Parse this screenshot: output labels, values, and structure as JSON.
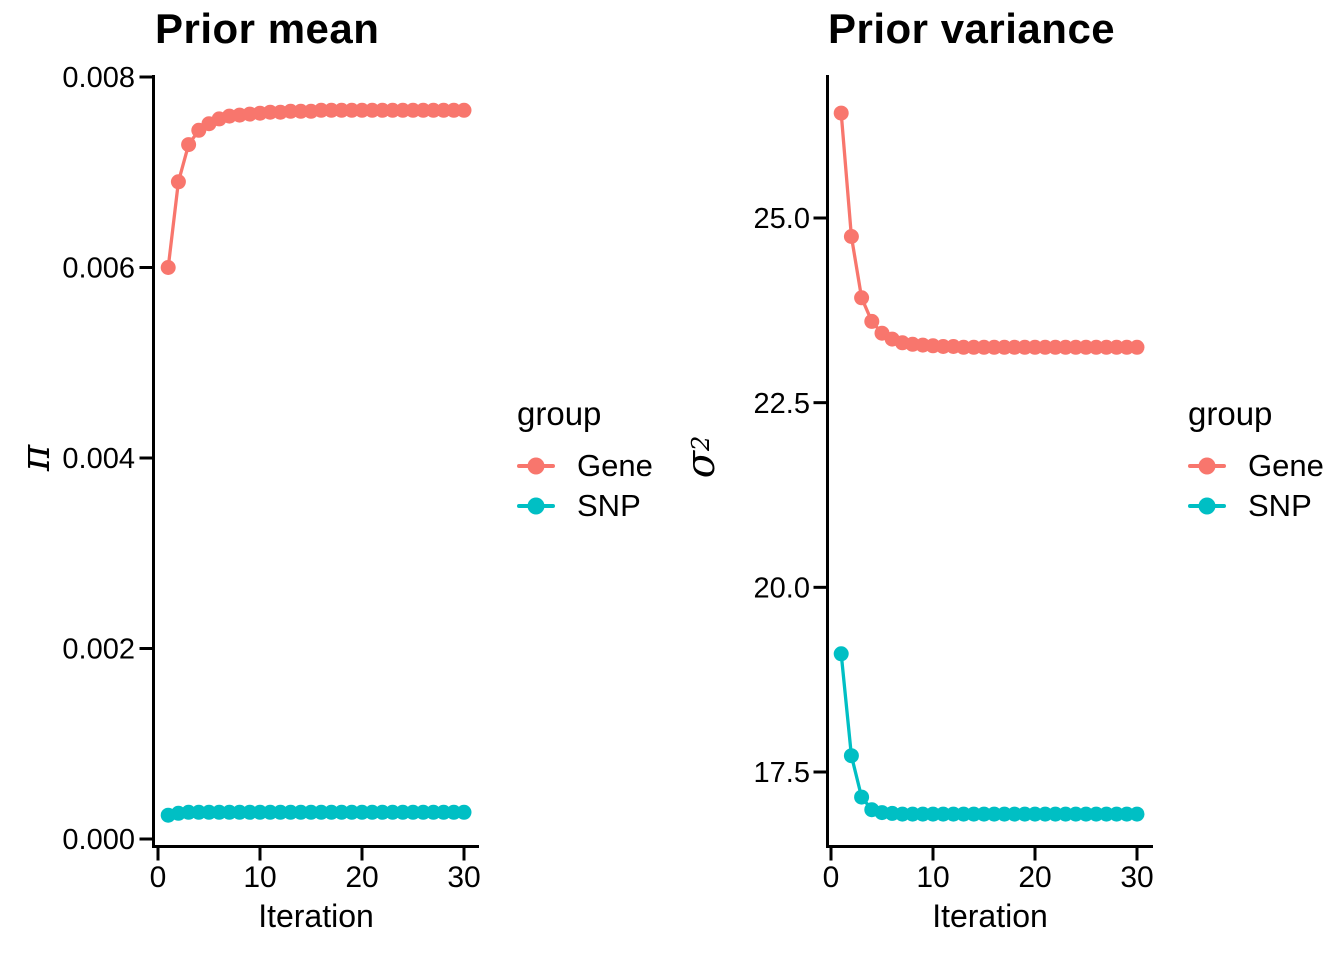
{
  "figure": {
    "background": "#ffffff",
    "text_color": "#000000",
    "axis_color": "#000000",
    "gene_color": "#F8766D",
    "snp_color": "#00BFC4"
  },
  "chart_data": [
    {
      "type": "line",
      "title": "Prior mean",
      "xlabel": "Iteration",
      "ylabel": "π",
      "ylabel_base": "π",
      "ylabel_sup": "",
      "xlim": [
        -0.45,
        31.45
      ],
      "ylim": [
        0,
        0.008
      ],
      "grid": "off",
      "legend_position": "right",
      "x_tick_values": [
        0,
        10,
        20,
        30
      ],
      "x_tick_labels": [
        "0",
        "10",
        "20",
        "30"
      ],
      "y_tick_values": [
        0,
        0.002,
        0.004,
        0.006,
        0.008
      ],
      "y_tick_labels": [
        "0.000",
        "0.002",
        "0.004",
        "0.006",
        "0.008"
      ],
      "x": [
        1,
        2,
        3,
        4,
        5,
        6,
        7,
        8,
        9,
        10,
        11,
        12,
        13,
        14,
        15,
        16,
        17,
        18,
        19,
        20,
        21,
        22,
        23,
        24,
        25,
        26,
        27,
        28,
        29,
        30
      ],
      "series": [
        {
          "name": "Gene",
          "color": "#F8766D",
          "values": [
            0.006,
            0.0069,
            0.00729,
            0.00744,
            0.00751,
            0.00756,
            0.00759,
            0.0076,
            0.00761,
            0.00762,
            0.00763,
            0.00763,
            0.00764,
            0.00764,
            0.00764,
            0.00765,
            0.00765,
            0.00765,
            0.00765,
            0.00765,
            0.00765,
            0.00765,
            0.00765,
            0.00765,
            0.00765,
            0.00765,
            0.00765,
            0.00765,
            0.00765,
            0.00765
          ]
        },
        {
          "name": "SNP",
          "color": "#00BFC4",
          "values": [
            0.00025,
            0.00027,
            0.00028,
            0.00028,
            0.00028,
            0.00028,
            0.00028,
            0.00028,
            0.00028,
            0.00028,
            0.00028,
            0.00028,
            0.00028,
            0.00028,
            0.00028,
            0.00028,
            0.00028,
            0.00028,
            0.00028,
            0.00028,
            0.00028,
            0.00028,
            0.00028,
            0.00028,
            0.00028,
            0.00028,
            0.00028,
            0.00028,
            0.00028,
            0.00028
          ]
        }
      ],
      "legend": {
        "title": "group",
        "entries": [
          {
            "label": "Gene",
            "color": "#F8766D"
          },
          {
            "label": "SNP",
            "color": "#00BFC4"
          }
        ]
      }
    },
    {
      "type": "line",
      "title": "Prior variance",
      "xlabel": "Iteration",
      "ylabel": "σ²",
      "ylabel_base": "σ",
      "ylabel_sup": "2",
      "xlim": [
        -0.45,
        31.45
      ],
      "ylim": [
        16.5,
        26.95
      ],
      "grid": "off",
      "legend_position": "right",
      "x_tick_values": [
        0,
        10,
        20,
        30
      ],
      "x_tick_labels": [
        "0",
        "10",
        "20",
        "30"
      ],
      "y_tick_values": [
        17.5,
        20.0,
        22.5,
        25.0
      ],
      "y_tick_labels": [
        "17.5",
        "20.0",
        "22.5",
        "25.0"
      ],
      "x": [
        1,
        2,
        3,
        4,
        5,
        6,
        7,
        8,
        9,
        10,
        11,
        12,
        13,
        14,
        15,
        16,
        17,
        18,
        19,
        20,
        21,
        22,
        23,
        24,
        25,
        26,
        27,
        28,
        29,
        30
      ],
      "series": [
        {
          "name": "Gene",
          "color": "#F8766D",
          "values": [
            26.42,
            24.75,
            23.92,
            23.6,
            23.44,
            23.36,
            23.31,
            23.29,
            23.28,
            23.27,
            23.26,
            23.26,
            23.25,
            23.25,
            23.25,
            23.25,
            23.25,
            23.25,
            23.25,
            23.25,
            23.25,
            23.25,
            23.25,
            23.25,
            23.25,
            23.25,
            23.25,
            23.25,
            23.25,
            23.25
          ]
        },
        {
          "name": "SNP",
          "color": "#00BFC4",
          "values": [
            19.1,
            17.72,
            17.16,
            16.99,
            16.95,
            16.94,
            16.93,
            16.93,
            16.93,
            16.93,
            16.93,
            16.93,
            16.93,
            16.93,
            16.93,
            16.93,
            16.93,
            16.93,
            16.93,
            16.93,
            16.93,
            16.93,
            16.93,
            16.93,
            16.93,
            16.93,
            16.93,
            16.93,
            16.93,
            16.93
          ]
        }
      ],
      "legend": {
        "title": "group",
        "entries": [
          {
            "label": "Gene",
            "color": "#F8766D"
          },
          {
            "label": "SNP",
            "color": "#00BFC4"
          }
        ]
      }
    }
  ]
}
